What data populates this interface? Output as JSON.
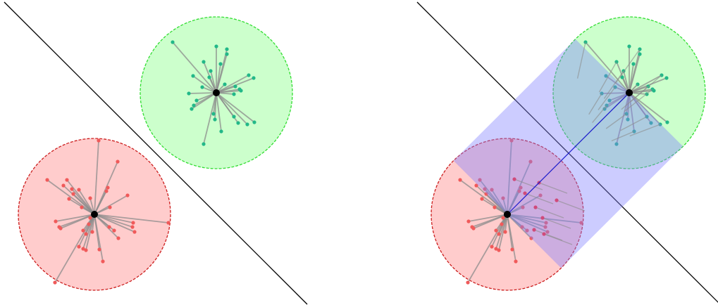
{
  "colors": {
    "red_fill": "#ffcccc",
    "red_stroke": "#cc1f1f",
    "red_point": "#f05a5a",
    "green_fill": "#ccffcc",
    "green_stroke": "#33dd33",
    "green_point": "#22b888",
    "spoke": "#8c8c8c",
    "projection_band": "#8080ff",
    "connector": "#1a1acc",
    "center": "#000000",
    "separator": "#000000"
  },
  "panels": [
    {
      "id": "left",
      "show_projection": false
    },
    {
      "id": "right",
      "show_projection": true
    }
  ]
}
